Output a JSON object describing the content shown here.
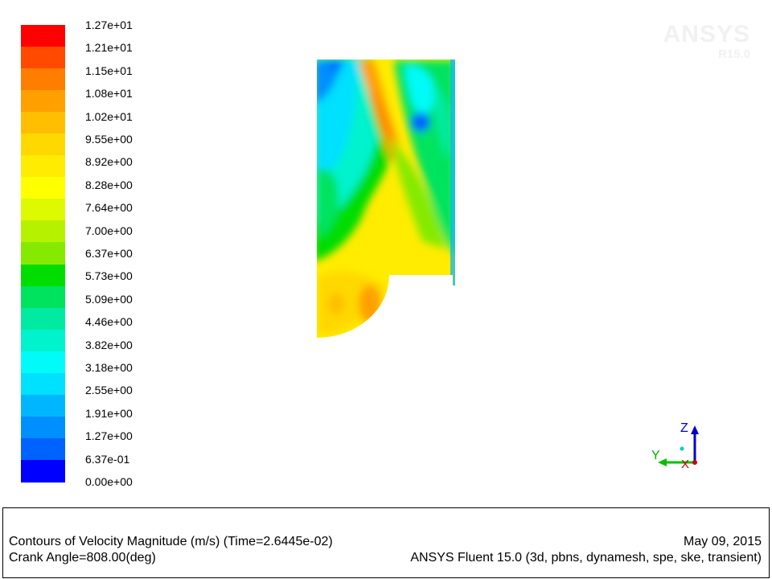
{
  "colorbar": {
    "labels": [
      "1.27e+01",
      "1.21e+01",
      "1.15e+01",
      "1.08e+01",
      "1.02e+01",
      "9.55e+00",
      "8.92e+00",
      "8.28e+00",
      "7.64e+00",
      "7.00e+00",
      "6.37e+00",
      "5.73e+00",
      "5.09e+00",
      "4.46e+00",
      "3.82e+00",
      "3.18e+00",
      "2.55e+00",
      "1.91e+00",
      "1.27e+00",
      "6.37e-01",
      "0.00e+00"
    ],
    "colors": [
      "#ff0000",
      "#ff4a00",
      "#ff7d00",
      "#ffa000",
      "#ffbe00",
      "#ffd800",
      "#ffec00",
      "#ffff00",
      "#ddfa00",
      "#b6f200",
      "#85ea00",
      "#00dd00",
      "#00e35f",
      "#00eba1",
      "#00f3cd",
      "#00fbf8",
      "#00e0ff",
      "#00b7ff",
      "#008fff",
      "#0062ff",
      "#0000ff"
    ]
  },
  "watermark": {
    "brand": "ANSYS",
    "version": "R15.0"
  },
  "axes": {
    "z_label": "Z",
    "y_label": "Y",
    "x_label": "X"
  },
  "caption": {
    "title": "Contours of Velocity Magnitude (m/s)  (Time=2.6445e-02)",
    "angle": "Crank Angle=808.00(deg)",
    "date": "May 09, 2015",
    "solver": "ANSYS Fluent 15.0 (3d, pbns, dynamesh, spe, ske, transient)"
  }
}
